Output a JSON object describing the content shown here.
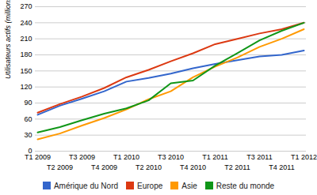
{
  "chart_data": {
    "type": "line",
    "y_label": "Utilisateurs actifs (millions)",
    "categories": [
      "T1 2009",
      "T2 2009",
      "T3 2009",
      "T4 2009",
      "T1 2010",
      "T2 2010",
      "T3 2010",
      "T4 2010",
      "T1 2011",
      "T2 2011",
      "T3 2011",
      "T4 2011",
      "T1 2012"
    ],
    "series": [
      {
        "name": "Amérique du Nord",
        "color": "#3366cc",
        "values": [
          68,
          85,
          98,
          112,
          130,
          137,
          145,
          155,
          163,
          170,
          177,
          180,
          188
        ]
      },
      {
        "name": "Europe",
        "color": "#dc3912",
        "values": [
          72,
          88,
          102,
          118,
          138,
          152,
          168,
          183,
          200,
          210,
          220,
          228,
          240
        ]
      },
      {
        "name": "Asie",
        "color": "#ff9900",
        "values": [
          22,
          33,
          48,
          62,
          78,
          97,
          112,
          138,
          158,
          175,
          195,
          210,
          228
        ]
      },
      {
        "name": "Reste du monde",
        "color": "#109618",
        "values": [
          35,
          45,
          58,
          70,
          80,
          95,
          127,
          132,
          160,
          183,
          207,
          225,
          240
        ]
      }
    ],
    "ylim": [
      0,
      270
    ],
    "yticks": [
      0,
      30,
      60,
      90,
      120,
      150,
      180,
      210,
      240,
      270
    ],
    "grid": true,
    "legend": "bottom"
  }
}
